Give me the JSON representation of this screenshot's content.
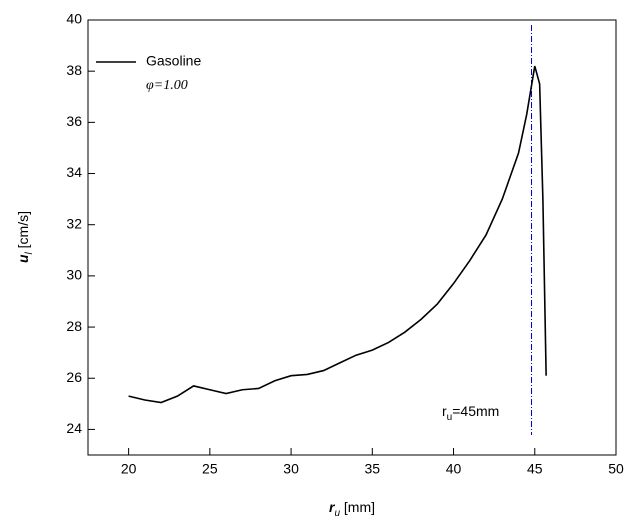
{
  "chart_data": {
    "type": "line",
    "x": [
      20,
      21,
      22,
      23,
      24,
      25,
      26,
      27,
      28,
      29,
      30,
      31,
      32,
      33,
      34,
      35,
      36,
      37,
      38,
      39,
      40,
      41,
      42,
      43,
      44,
      44.5,
      45,
      45.3,
      45.5,
      45.7
    ],
    "series": [
      {
        "name": "Gasoline",
        "color": "#000000",
        "values": [
          25.3,
          25.15,
          25.05,
          25.3,
          25.7,
          25.55,
          25.4,
          25.55,
          25.6,
          25.9,
          26.1,
          26.15,
          26.3,
          26.6,
          26.9,
          27.1,
          27.4,
          27.8,
          28.3,
          28.9,
          29.7,
          30.6,
          31.6,
          33.0,
          34.8,
          36.3,
          38.2,
          37.5,
          33.0,
          26.1
        ]
      }
    ],
    "legend_note": "φ=1.00",
    "x_label": {
      "symbol": "r",
      "sub": "u",
      "unit": " [mm]"
    },
    "y_label": {
      "symbol": "u",
      "sub": "l",
      "unit": " [cm/s]"
    },
    "ref_line": {
      "x": 44.8,
      "color": "#0000cc",
      "label": {
        "symbol": "r",
        "sub": "u",
        "rest": "=45mm"
      }
    },
    "xlim": [
      17.5,
      50
    ],
    "xticks": [
      20,
      25,
      30,
      35,
      40,
      45,
      50
    ],
    "ylim": [
      23,
      40
    ],
    "yticks": [
      24,
      26,
      28,
      30,
      32,
      34,
      36,
      38,
      40
    ],
    "legend": "upper left"
  }
}
